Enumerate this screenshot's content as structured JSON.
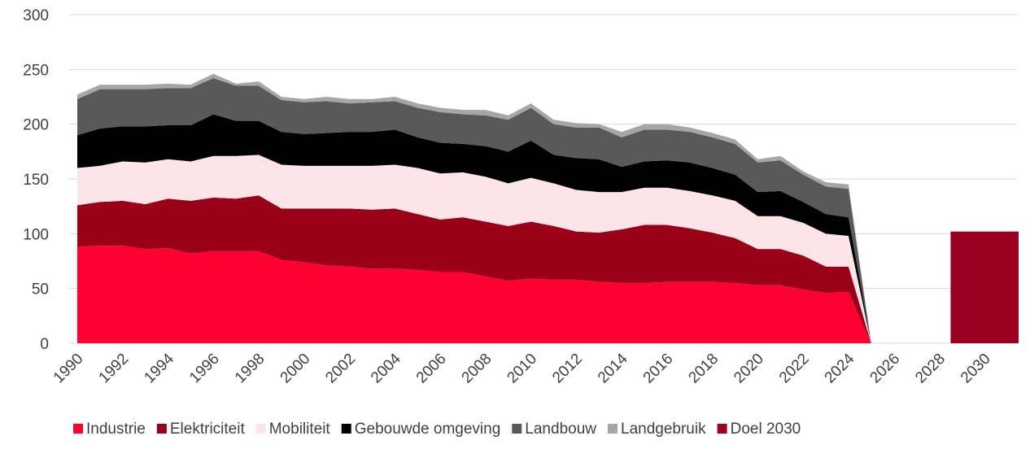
{
  "chart_data": {
    "type": "stacked-area",
    "categories": [
      "1990",
      null,
      "1992",
      null,
      "1994",
      null,
      "1996",
      null,
      "1998",
      null,
      "2000",
      null,
      "2002",
      null,
      "2004",
      null,
      "2006",
      null,
      "2008",
      null,
      "2010",
      null,
      "2012",
      null,
      "2014",
      null,
      "2016",
      null,
      "2018",
      null,
      "2020",
      null,
      "2022",
      null,
      "2024",
      null,
      "2026",
      null,
      "2028",
      null,
      "2030"
    ],
    "series": [
      {
        "name": "Industrie",
        "color": "#ff0033",
        "values": [
          88,
          89,
          89,
          86,
          87,
          82,
          84,
          84,
          84,
          76,
          74,
          71,
          70,
          68,
          68,
          67,
          65,
          65,
          61,
          57,
          59,
          58,
          58,
          56,
          55,
          55,
          56,
          56,
          56,
          55,
          53,
          53,
          49,
          46,
          47,
          0,
          null,
          null,
          null,
          null,
          null
        ]
      },
      {
        "name": "Elektriciteit",
        "color": "#9b0019",
        "values": [
          38,
          40,
          41,
          41,
          45,
          48,
          49,
          48,
          51,
          47,
          49,
          52,
          53,
          54,
          55,
          51,
          48,
          50,
          50,
          50,
          52,
          49,
          44,
          45,
          49,
          53,
          52,
          49,
          45,
          41,
          33,
          33,
          31,
          24,
          23,
          0,
          null,
          null,
          null,
          null,
          null
        ]
      },
      {
        "name": "Mobiliteit",
        "color": "#fde4e8",
        "values": [
          34,
          33,
          36,
          38,
          36,
          36,
          38,
          39,
          37,
          40,
          39,
          39,
          39,
          40,
          40,
          42,
          42,
          41,
          41,
          39,
          40,
          39,
          38,
          37,
          34,
          34,
          34,
          34,
          34,
          34,
          30,
          30,
          30,
          30,
          28,
          0,
          null,
          null,
          null,
          null,
          null
        ]
      },
      {
        "name": "Gebouwde omgeving",
        "color": "#000000",
        "values": [
          30,
          34,
          32,
          33,
          31,
          33,
          38,
          32,
          31,
          30,
          29,
          30,
          31,
          31,
          32,
          28,
          28,
          26,
          28,
          29,
          34,
          26,
          29,
          30,
          23,
          24,
          25,
          26,
          25,
          24,
          22,
          23,
          19,
          18,
          17,
          0,
          null,
          null,
          null,
          null,
          null
        ]
      },
      {
        "name": "Landbouw",
        "color": "#595959",
        "values": [
          33,
          36,
          34,
          34,
          34,
          34,
          33,
          32,
          32,
          29,
          29,
          29,
          26,
          27,
          26,
          27,
          28,
          27,
          28,
          29,
          30,
          28,
          28,
          29,
          27,
          29,
          28,
          28,
          28,
          28,
          27,
          28,
          25,
          25,
          26,
          0,
          null,
          null,
          null,
          null,
          null
        ]
      },
      {
        "name": "Landgebruik",
        "color": "#a6a6a6",
        "values": [
          4,
          4,
          4,
          4,
          4,
          3,
          4,
          2,
          4,
          3,
          3,
          4,
          4,
          3,
          4,
          4,
          4,
          4,
          5,
          4,
          4,
          4,
          4,
          3,
          5,
          5,
          5,
          4,
          4,
          4,
          3,
          4,
          3,
          4,
          4,
          0,
          null,
          null,
          null,
          null,
          null
        ]
      },
      {
        "name": "Doel 2030",
        "color": "#990022",
        "kind": "bar",
        "values": [
          null,
          null,
          null,
          null,
          null,
          null,
          null,
          null,
          null,
          null,
          null,
          null,
          null,
          null,
          null,
          null,
          null,
          null,
          null,
          null,
          null,
          null,
          null,
          null,
          null,
          null,
          null,
          null,
          null,
          null,
          null,
          null,
          null,
          null,
          null,
          null,
          null,
          null,
          null,
          null,
          102
        ]
      }
    ],
    "ylim": [
      0,
      300
    ],
    "yticks": [
      0,
      50,
      100,
      150,
      200,
      250,
      300
    ],
    "grid": true,
    "legend": "bottom"
  }
}
